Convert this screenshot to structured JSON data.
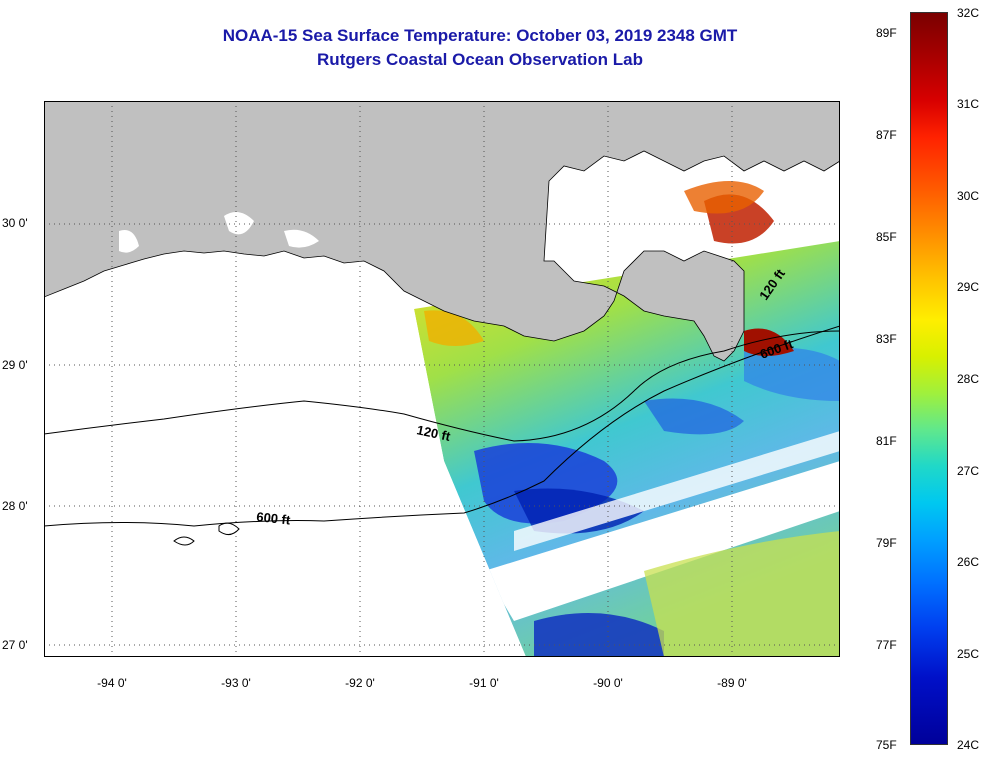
{
  "title": {
    "line1": "NOAA-15 Sea Surface Temperature:  October 03, 2019 2348 GMT",
    "line2": "Rutgers Coastal Ocean Observation Lab"
  },
  "axes": {
    "lat_labels": [
      "30 0'",
      "29 0'",
      "28 0'",
      "27 0'"
    ],
    "lon_labels": [
      "-94 0'",
      "-93 0'",
      "-92 0'",
      "-91 0'",
      "-90 0'",
      "-89 0'"
    ],
    "lat_range": [
      26.95,
      30.85
    ],
    "lon_range": [
      -94.5,
      -88.0
    ]
  },
  "contours": {
    "shallow_west": "120 ft",
    "deep_west": "600 ft",
    "shallow_east": "120 ft",
    "deep_east": "600 ft"
  },
  "colorbar": {
    "fahrenheit": [
      "89F",
      "87F",
      "85F",
      "83F",
      "81F",
      "79F",
      "77F",
      "75F"
    ],
    "celsius": [
      "32C",
      "31C",
      "30C",
      "29C",
      "28C",
      "27C",
      "26C",
      "25C",
      "24C"
    ],
    "min_c": 24,
    "max_c": 32
  },
  "colors": {
    "title": "#1a1aa8",
    "land": "#c0c0c0",
    "no_data": "#ffffff"
  }
}
